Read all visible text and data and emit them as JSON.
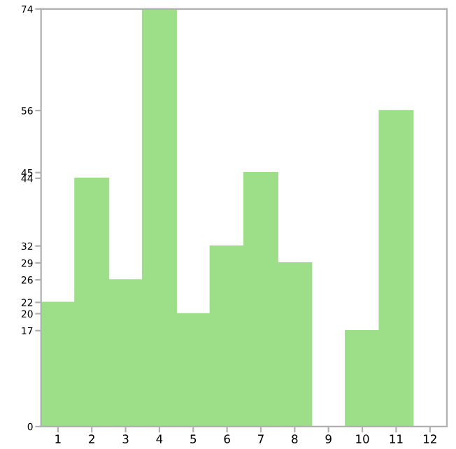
{
  "chart_data": {
    "type": "bar",
    "categories": [
      "1",
      "2",
      "3",
      "4",
      "5",
      "6",
      "7",
      "8",
      "9",
      "10",
      "11",
      "12"
    ],
    "values": [
      22,
      44,
      26,
      74,
      20,
      32,
      45,
      29,
      0,
      17,
      56,
      0
    ],
    "color": "#9ddf88",
    "ylim": [
      0,
      74
    ],
    "yticks": [
      0,
      17,
      20,
      22,
      26,
      29,
      32,
      44,
      45,
      56,
      74
    ],
    "grid": false
  }
}
